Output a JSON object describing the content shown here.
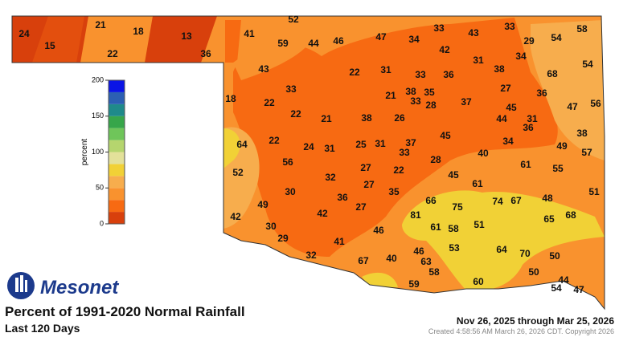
{
  "header": {
    "logo": "Mesonet",
    "title": "Percent of 1991-2020 Normal Rainfall",
    "subtitle": "Last 120 Days",
    "date_range": "Nov 26, 2025 through Mar 25, 2026",
    "created": "Created 4:58:56 AM March 26, 2026 CDT. Copyright 2026"
  },
  "legend": {
    "label": "percent",
    "range": [
      0,
      200
    ],
    "ticks": [
      0,
      50,
      100,
      150,
      200
    ],
    "colors": [
      "#d8400c",
      "#f76a12",
      "#f9922e",
      "#f7ad4d",
      "#f1d136",
      "#e3e19a",
      "#b5d56e",
      "#6fc55a",
      "#37a64a",
      "#1f8a8a",
      "#2c5fb3",
      "#0a14e6"
    ]
  },
  "stations": [
    24,
    15,
    21,
    18,
    22,
    13,
    36,
    52,
    41,
    59,
    44,
    46,
    47,
    34,
    33,
    43,
    33,
    29,
    54,
    58,
    42,
    31,
    34,
    54,
    43,
    22,
    31,
    33,
    36,
    38,
    68,
    18,
    33,
    22,
    21,
    38,
    35,
    33,
    28,
    37,
    27,
    36,
    47,
    56,
    22,
    21,
    38,
    26,
    45,
    44,
    31,
    36,
    38,
    64,
    22,
    24,
    31,
    25,
    31,
    37,
    33,
    45,
    34,
    49,
    57,
    52,
    56,
    40,
    28,
    61,
    55,
    32,
    27,
    22,
    45,
    27,
    61,
    30,
    36,
    35,
    66,
    75,
    74,
    67,
    48,
    51,
    49,
    42,
    27,
    81,
    65,
    68,
    42,
    30,
    61,
    58,
    51,
    46,
    29,
    41,
    53,
    64,
    70,
    50,
    32,
    67,
    40,
    46,
    63,
    58,
    50,
    44,
    47,
    59,
    60,
    54
  ]
}
